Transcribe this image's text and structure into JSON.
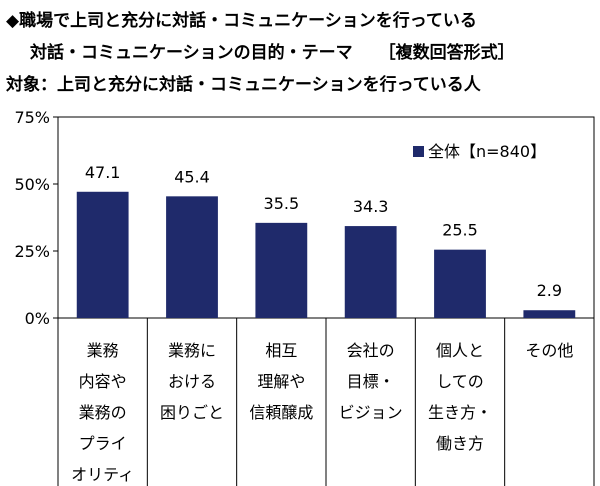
{
  "header": {
    "line1": "◆職場で上司と充分に対話・コミュニケーションを行っている",
    "line2": "対話・コミュニケーションの目的・テーマ",
    "line2_tag": "［複数回答形式］",
    "line3": "対象：上司と充分に対話・コミュニケーションを行っている人"
  },
  "colors": {
    "bar": "#1f2a6b",
    "axis": "#000000"
  },
  "chart_data": {
    "type": "bar",
    "categories": [
      "業務\n内容や\n業務の\nプライ\nオリティ",
      "業務に\nおける\n困りごと",
      "相互\n理解や\n信頼醸成",
      "会社の\n目標・\nビジョン",
      "個人と\nしての\n生き方・\n働き方",
      "その他"
    ],
    "series": [
      {
        "name": "全体【n=840】",
        "values": [
          47.1,
          45.4,
          35.5,
          34.3,
          25.5,
          2.9
        ]
      }
    ],
    "value_labels": [
      "47.1",
      "45.4",
      "35.5",
      "34.3",
      "25.5",
      "2.9"
    ],
    "ylim": [
      0,
      75
    ],
    "yticks": [
      0,
      25,
      50,
      75
    ],
    "ytick_labels": [
      "0%",
      "25%",
      "50%",
      "75%"
    ],
    "legend_position": "top-right",
    "grid": false
  }
}
